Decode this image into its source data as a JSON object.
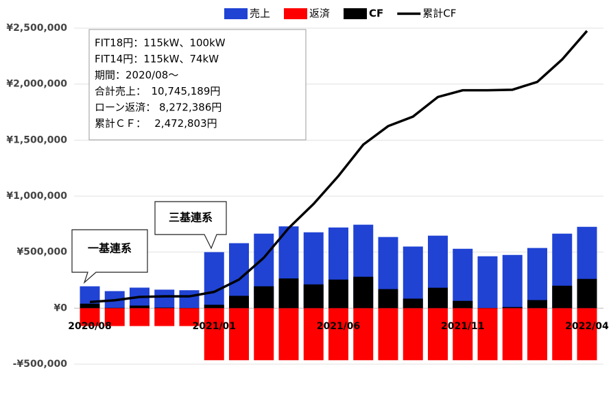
{
  "chart_data": {
    "type": "bar",
    "categories": [
      "2020/08",
      null,
      null,
      null,
      null,
      "2021/01",
      null,
      null,
      null,
      null,
      "2021/06",
      null,
      null,
      null,
      null,
      "2021/11",
      null,
      null,
      null,
      null,
      "2022/04"
    ],
    "series": [
      {
        "name": "売上",
        "color": "#2043d4",
        "values": [
          195000,
          152000,
          183000,
          165000,
          160000,
          500000,
          580000,
          665000,
          730000,
          677000,
          720000,
          745000,
          635000,
          550000,
          647000,
          530000,
          463000,
          475000,
          537000,
          665000,
          726000
        ]
      },
      {
        "name": "返済",
        "color": "#ff0000",
        "values": [
          -160000,
          -160000,
          -160000,
          -160000,
          -160000,
          -465000,
          -465000,
          -465000,
          -465000,
          -465000,
          -465000,
          -465000,
          -465000,
          -465000,
          -465000,
          -465000,
          -465000,
          -465000,
          -465000,
          -465000,
          -465000
        ]
      },
      {
        "name": "CF",
        "color": "#000000",
        "values": [
          40000,
          3000,
          23000,
          5000,
          2000,
          30000,
          110000,
          195000,
          265000,
          212000,
          255000,
          280000,
          170000,
          85000,
          182000,
          65000,
          2000,
          10000,
          72000,
          200000,
          261000
        ]
      },
      {
        "name": "累計CF",
        "type": "line",
        "color": "#000000",
        "values": [
          55000,
          70000,
          100000,
          105000,
          105000,
          145000,
          255000,
          450000,
          715000,
          930000,
          1180000,
          1460000,
          1625000,
          1710000,
          1885000,
          1945000,
          1945000,
          1950000,
          2020000,
          2220000,
          2475000
        ]
      }
    ],
    "ylim": [
      -500000,
      2500000
    ],
    "yticks": [
      {
        "value": -500000,
        "label": "-¥500,000"
      },
      {
        "value": 0,
        "label": "¥0"
      },
      {
        "value": 500000,
        "label": "¥500,000"
      },
      {
        "value": 1000000,
        "label": "¥1,000,000"
      },
      {
        "value": 1500000,
        "label": "¥1,500,000"
      },
      {
        "value": 2000000,
        "label": "¥2,000,000"
      },
      {
        "value": 2500000,
        "label": "¥2,500,000"
      }
    ],
    "grid": true,
    "legend": "top",
    "info_box": [
      "FIT18円：115kW、100kW",
      "FIT14円：115kW、74kW",
      "期間：2020/08～",
      "合計売上：　10,745,189円",
      "ローン返済：  8,272,386円",
      "累計ＣＦ：　  2,472,803円"
    ],
    "annotations": [
      "一基連系",
      "三基連系"
    ]
  }
}
